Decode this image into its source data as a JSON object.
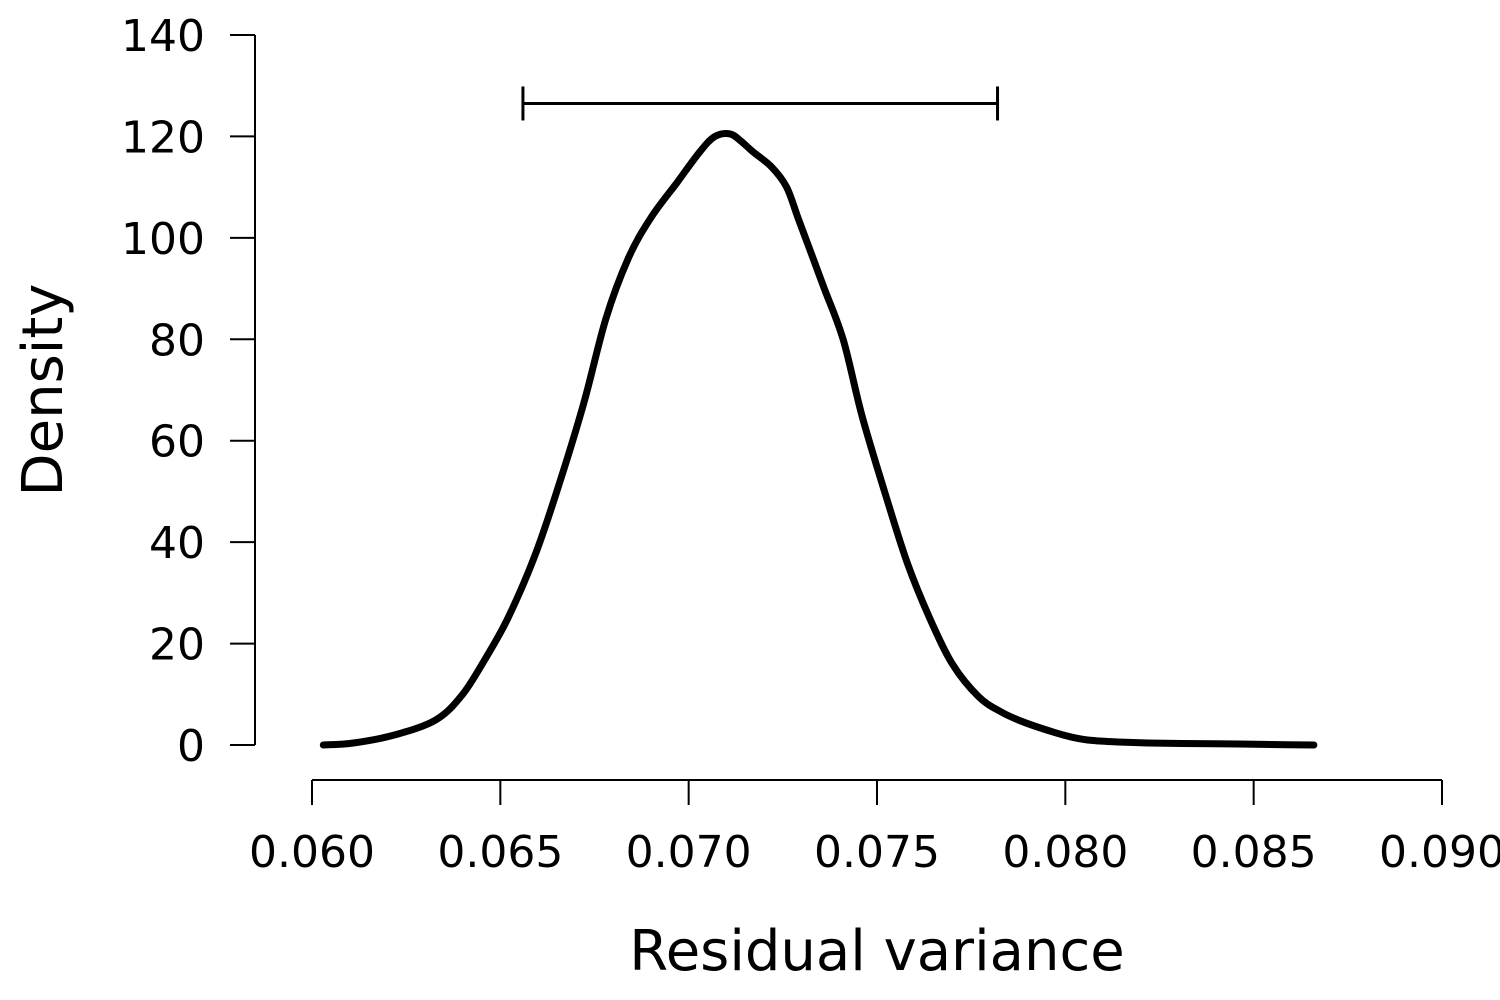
{
  "chart_data": {
    "type": "line",
    "title": "",
    "xlabel": "Residual variance",
    "ylabel": "Density",
    "xlim": [
      0.06,
      0.09
    ],
    "ylim": [
      0,
      140
    ],
    "x_ticks": [
      "0.060",
      "0.065",
      "0.070",
      "0.075",
      "0.080",
      "0.085",
      "0.090"
    ],
    "y_ticks": [
      "0",
      "20",
      "40",
      "60",
      "80",
      "100",
      "120",
      "140"
    ],
    "grid": false,
    "legend": "none",
    "series": [
      {
        "color": "#000000",
        "x": [
          0.0603,
          0.0611,
          0.0622,
          0.0633,
          0.064,
          0.0646,
          0.0652,
          0.0659,
          0.0665,
          0.0672,
          0.0678,
          0.0684,
          0.069,
          0.0697,
          0.0703,
          0.0707,
          0.0711,
          0.0714,
          0.0717,
          0.0722,
          0.0726,
          0.0729,
          0.0733,
          0.0736,
          0.0741,
          0.0746,
          0.0752,
          0.0758,
          0.0764,
          0.077,
          0.0777,
          0.0783,
          0.0789,
          0.0797,
          0.0802,
          0.0807,
          0.0814,
          0.0822,
          0.0831,
          0.0846,
          0.0859,
          0.0866
        ],
        "y": [
          0,
          0.4,
          2,
          5,
          10,
          17,
          25,
          37,
          50,
          67,
          84,
          96,
          104,
          111,
          117,
          120,
          120.5,
          119,
          117,
          114,
          110,
          104,
          96,
          90,
          80,
          65,
          50,
          36,
          25,
          16,
          9.5,
          6.5,
          4.5,
          2.5,
          1.5,
          0.9,
          0.6,
          0.4,
          0.3,
          0.2,
          0.05,
          0
        ]
      }
    ],
    "interval": {
      "y": 126.5,
      "from": 0.0656,
      "to": 0.0782
    }
  }
}
